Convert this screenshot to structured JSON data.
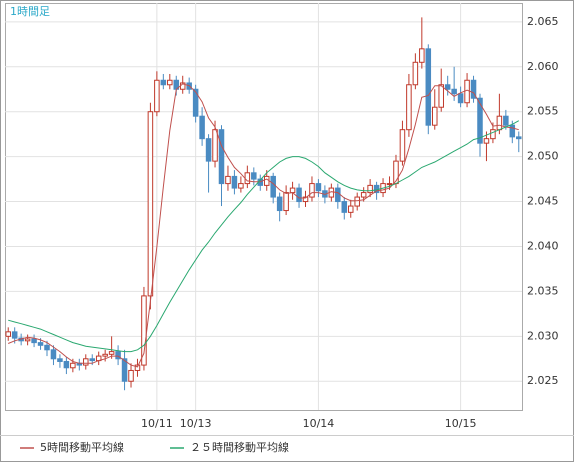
{
  "chart_data": {
    "type": "candlestick",
    "title": "1時間足",
    "categories": [
      null,
      null,
      null,
      null,
      null,
      null,
      null,
      null,
      null,
      null,
      null,
      null,
      null,
      null,
      null,
      null,
      null,
      null,
      null,
      null,
      null,
      null,
      null,
      "10/11",
      null,
      null,
      null,
      null,
      null,
      "10/13",
      null,
      null,
      null,
      null,
      null,
      null,
      null,
      null,
      null,
      null,
      null,
      null,
      null,
      null,
      null,
      null,
      null,
      null,
      "10/14",
      null,
      null,
      null,
      null,
      null,
      null,
      null,
      null,
      null,
      null,
      null,
      null,
      null,
      null,
      null,
      null,
      null,
      null,
      null,
      null,
      null,
      "10/15",
      null,
      null,
      null,
      null,
      null,
      null,
      null,
      null,
      null
    ],
    "open": [
      2.03,
      2.0305,
      2.0298,
      2.0295,
      2.0297,
      2.0293,
      2.029,
      2.0285,
      2.0275,
      2.0272,
      2.0265,
      2.027,
      2.0268,
      2.0275,
      2.0273,
      2.0278,
      2.028,
      2.0283,
      2.0275,
      2.025,
      2.0262,
      2.0268,
      2.0345,
      2.055,
      2.0585,
      2.058,
      2.0585,
      2.0575,
      2.0582,
      2.0575,
      2.0545,
      2.052,
      2.0495,
      2.053,
      2.047,
      2.0478,
      2.0465,
      2.047,
      2.0482,
      2.0475,
      2.0468,
      2.0478,
      2.0455,
      2.044,
      2.046,
      2.0465,
      2.045,
      2.0455,
      2.047,
      2.0462,
      2.0455,
      2.0465,
      2.045,
      2.0438,
      2.0445,
      2.0455,
      2.046,
      2.0468,
      2.046,
      2.047,
      2.047,
      2.0495,
      2.053,
      2.058,
      2.0605,
      2.062,
      2.0535,
      2.0555,
      2.058,
      2.0575,
      2.057,
      2.056,
      2.0585,
      2.0565,
      2.0515,
      2.052,
      2.053,
      2.0545,
      2.0535,
      2.0522
    ],
    "high": [
      2.031,
      2.031,
      2.0303,
      2.0302,
      2.0302,
      2.0298,
      2.0295,
      2.029,
      2.028,
      2.0277,
      2.0275,
      2.0275,
      2.028,
      2.028,
      2.0283,
      2.0285,
      2.03,
      2.029,
      2.0285,
      2.027,
      2.0275,
      2.0355,
      2.056,
      2.0595,
      2.0592,
      2.0592,
      2.059,
      2.059,
      2.0588,
      2.058,
      2.0555,
      2.0525,
      2.054,
      2.0535,
      2.049,
      2.0485,
      2.0478,
      2.049,
      2.0488,
      2.048,
      2.0485,
      2.0482,
      2.046,
      2.0468,
      2.0472,
      2.047,
      2.0462,
      2.0478,
      2.0475,
      2.0468,
      2.047,
      2.047,
      2.0455,
      2.0452,
      2.046,
      2.0466,
      2.0475,
      2.0472,
      2.0476,
      2.0478,
      2.0502,
      2.054,
      2.0592,
      2.0615,
      2.0655,
      2.0625,
      2.0575,
      2.0598,
      2.059,
      2.06,
      2.0578,
      2.0593,
      2.059,
      2.057,
      2.0528,
      2.0538,
      2.057,
      2.0552,
      2.054,
      2.0528
    ],
    "low": [
      2.0295,
      2.0292,
      2.029,
      2.029,
      2.0288,
      2.0285,
      2.0278,
      2.0268,
      2.0265,
      2.0258,
      2.026,
      2.0262,
      2.0263,
      2.0268,
      2.0268,
      2.0272,
      2.0275,
      2.0268,
      2.024,
      2.0243,
      2.0255,
      2.0262,
      2.033,
      2.0545,
      2.0575,
      2.0575,
      2.0568,
      2.057,
      2.057,
      2.0538,
      2.0512,
      2.046,
      2.0488,
      2.0445,
      2.0462,
      2.0458,
      2.046,
      2.0465,
      2.0468,
      2.0462,
      2.0462,
      2.0448,
      2.0428,
      2.0435,
      2.0452,
      2.0443,
      2.0444,
      2.045,
      2.0455,
      2.0448,
      2.045,
      2.0442,
      2.043,
      2.0432,
      2.044,
      2.045,
      2.0455,
      2.0452,
      2.0455,
      2.0463,
      2.0465,
      2.049,
      2.0522,
      2.0575,
      2.0598,
      2.0525,
      2.053,
      2.055,
      2.0568,
      2.0562,
      2.0555,
      2.0555,
      2.056,
      2.05,
      2.0495,
      2.0515,
      2.0525,
      2.053,
      2.0515,
      2.0505
    ],
    "close": [
      2.0305,
      2.0298,
      2.0295,
      2.0297,
      2.0293,
      2.029,
      2.0285,
      2.0275,
      2.0272,
      2.0265,
      2.027,
      2.0268,
      2.0275,
      2.0273,
      2.0278,
      2.028,
      2.0283,
      2.0275,
      2.025,
      2.0262,
      2.0268,
      2.0345,
      2.055,
      2.0585,
      2.058,
      2.0585,
      2.0575,
      2.0582,
      2.0575,
      2.0545,
      2.052,
      2.0495,
      2.053,
      2.047,
      2.0478,
      2.0465,
      2.047,
      2.0482,
      2.0475,
      2.0468,
      2.0478,
      2.0455,
      2.044,
      2.046,
      2.0465,
      2.045,
      2.0455,
      2.047,
      2.0462,
      2.0455,
      2.0465,
      2.045,
      2.0438,
      2.0445,
      2.0455,
      2.046,
      2.0468,
      2.046,
      2.047,
      2.047,
      2.0495,
      2.053,
      2.058,
      2.0605,
      2.062,
      2.0535,
      2.0555,
      2.058,
      2.0575,
      2.057,
      2.056,
      2.0585,
      2.0565,
      2.0515,
      2.052,
      2.053,
      2.0545,
      2.0535,
      2.0522,
      2.052
    ],
    "up_color": "#c0392b",
    "down_color": "#4a8bc2",
    "series": [
      {
        "name": "5時間移動平均線",
        "color": "#c0504d",
        "values": [
          2.0292,
          2.0295,
          2.0297,
          2.0299,
          2.0298,
          2.0296,
          2.0293,
          2.0288,
          2.0283,
          2.0277,
          2.0272,
          2.027,
          2.027,
          2.027,
          2.0273,
          2.0275,
          2.0278,
          2.0278,
          2.0273,
          2.0268,
          2.0266,
          2.0281,
          2.0339,
          2.04,
          2.0466,
          2.0529,
          2.0575,
          2.0581,
          2.0579,
          2.0572,
          2.0561,
          2.0543,
          2.0533,
          2.0512,
          2.0499,
          2.0488,
          2.0481,
          2.0473,
          2.0472,
          2.0472,
          2.0475,
          2.047,
          2.0463,
          2.0459,
          2.046,
          2.0454,
          2.0454,
          2.046,
          2.046,
          2.0458,
          2.0461,
          2.046,
          2.0454,
          2.0451,
          2.0451,
          2.0452,
          2.0457,
          2.0462,
          2.0463,
          2.0465,
          2.0473,
          2.0485,
          2.0509,
          2.0536,
          2.0566,
          2.0568,
          2.0579,
          2.0579,
          2.0573,
          2.0567,
          2.0571,
          2.0574,
          2.0571,
          2.0559,
          2.0547,
          2.0534,
          2.0535,
          2.0533,
          2.0532,
          2.053
        ]
      },
      {
        "name": "２５時間移動平均線",
        "color": "#2aa870",
        "values": [
          2.0318,
          2.0316,
          2.0314,
          2.0312,
          2.031,
          2.0308,
          2.0305,
          2.0302,
          2.0299,
          2.0296,
          2.0293,
          2.0291,
          2.0289,
          2.0288,
          2.0287,
          2.0286,
          2.0285,
          2.0284,
          2.0283,
          2.0283,
          2.0285,
          2.029,
          2.03,
          2.0312,
          2.0325,
          2.0338,
          2.035,
          2.0362,
          2.0374,
          2.0385,
          2.0396,
          2.0405,
          2.0415,
          2.0424,
          2.0433,
          2.0441,
          2.0449,
          2.0458,
          2.0466,
          2.0474,
          2.0482,
          2.0488,
          2.0494,
          2.0498,
          2.05,
          2.05,
          2.0498,
          2.0494,
          2.0489,
          2.0482,
          2.0477,
          2.0472,
          2.0468,
          2.0465,
          2.0463,
          2.0462,
          2.0462,
          2.0463,
          2.0465,
          2.0467,
          2.047,
          2.0474,
          2.0478,
          2.0483,
          2.0488,
          2.0491,
          2.0494,
          2.0498,
          2.0502,
          2.0506,
          2.051,
          2.0514,
          2.0519,
          2.0521,
          2.0524,
          2.0527,
          2.053,
          2.0533,
          2.0536,
          2.054
        ]
      }
    ],
    "ylim": [
      2.0218,
      2.0671
    ],
    "yticks": [
      2.025,
      {
        "value": 2.03,
        "label": "2.030"
      },
      2.035,
      {
        "value": 2.04,
        "label": "2.040"
      },
      2.045,
      {
        "value": 2.05,
        "label": "2.050"
      },
      2.055,
      {
        "value": 2.06,
        "label": "2.060"
      },
      2.065
    ],
    "grid": true
  }
}
